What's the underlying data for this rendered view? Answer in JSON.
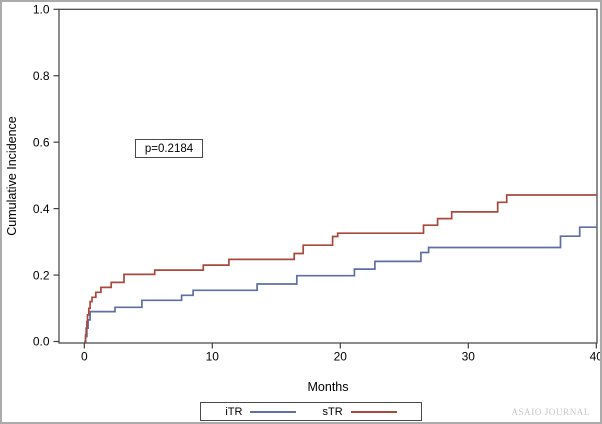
{
  "watermark": "ASAIO JOURNAL",
  "chart_data": {
    "type": "line",
    "variant": "cumulative-incidence-step",
    "title": "",
    "xlabel": "Months",
    "ylabel": "Cumulative Incidence",
    "xlim": [
      0,
      40
    ],
    "ylim": [
      0.0,
      1.0
    ],
    "grid": false,
    "legend_position": "bottom-center",
    "annotation": {
      "text": "p=0.2184",
      "x_months": 4,
      "y_value": 0.59
    },
    "xticks": {
      "values": [
        0,
        10,
        20,
        30,
        40
      ],
      "labels": [
        "0",
        "10",
        "20",
        "30",
        "40"
      ]
    },
    "yticks": {
      "values": [
        0.0,
        0.2,
        0.4,
        0.6,
        0.8,
        1.0
      ],
      "labels": [
        "0.0",
        "0.2",
        "0.4",
        "0.6",
        "0.8",
        "1.0"
      ]
    },
    "x_end": 40,
    "series": [
      {
        "name": "iTR",
        "color": "#5E6FA3",
        "steps": [
          [
            0,
            0
          ],
          [
            0.1,
            0.015
          ],
          [
            0.2,
            0.04
          ],
          [
            0.3,
            0.065
          ],
          [
            0.45,
            0.09
          ],
          [
            2.4,
            0.103
          ],
          [
            4.5,
            0.124
          ],
          [
            7.6,
            0.139
          ],
          [
            8.5,
            0.154
          ],
          [
            13.5,
            0.173
          ],
          [
            16.6,
            0.198
          ],
          [
            21.1,
            0.218
          ],
          [
            22.7,
            0.241
          ],
          [
            26.3,
            0.268
          ],
          [
            26.9,
            0.283
          ],
          [
            37.2,
            0.317
          ],
          [
            38.7,
            0.344
          ]
        ]
      },
      {
        "name": "sTR",
        "color": "#A9493E",
        "steps": [
          [
            0,
            0
          ],
          [
            0.1,
            0.02
          ],
          [
            0.15,
            0.04
          ],
          [
            0.2,
            0.06
          ],
          [
            0.25,
            0.08
          ],
          [
            0.35,
            0.1
          ],
          [
            0.45,
            0.12
          ],
          [
            0.6,
            0.133
          ],
          [
            0.9,
            0.148
          ],
          [
            1.3,
            0.163
          ],
          [
            2.1,
            0.178
          ],
          [
            3.1,
            0.202
          ],
          [
            5.5,
            0.215
          ],
          [
            9.3,
            0.23
          ],
          [
            11.3,
            0.247
          ],
          [
            16.4,
            0.265
          ],
          [
            17.1,
            0.29
          ],
          [
            19.4,
            0.316
          ],
          [
            19.8,
            0.326
          ],
          [
            26.5,
            0.35
          ],
          [
            27.6,
            0.37
          ],
          [
            28.7,
            0.39
          ],
          [
            32.3,
            0.419
          ],
          [
            33.0,
            0.441
          ]
        ]
      }
    ]
  }
}
